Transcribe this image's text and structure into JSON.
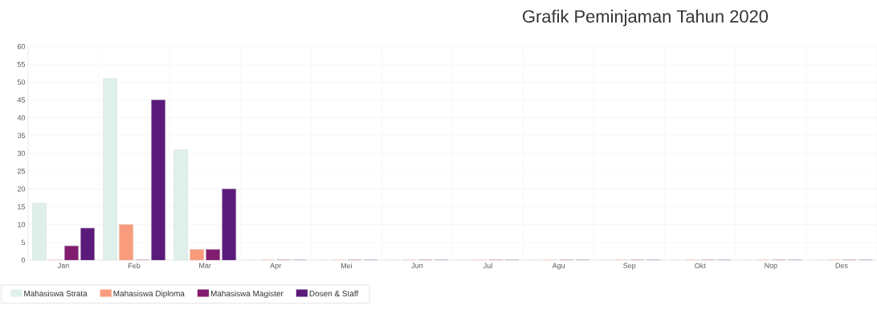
{
  "chart_data": {
    "type": "bar",
    "title": "Grafik Peminjaman Tahun 2020",
    "categories": [
      "Jan",
      "Feb",
      "Mar",
      "Apr",
      "Mei",
      "Jun",
      "Jul",
      "Agu",
      "Sep",
      "Okt",
      "Nop",
      "Des"
    ],
    "series": [
      {
        "name": "Mahasiswa Strata",
        "color": "#dff0ea",
        "values": [
          16,
          51,
          31,
          0,
          0,
          0,
          0,
          0,
          0,
          0,
          0,
          0
        ]
      },
      {
        "name": "Mahasiswa Diploma",
        "color": "#f99b7d",
        "values": [
          0,
          10,
          3,
          0,
          0,
          0,
          0,
          0,
          0,
          0,
          0,
          0
        ]
      },
      {
        "name": "Mahasiswa Magister",
        "color": "#821c6e",
        "values": [
          4,
          0,
          3,
          0,
          0,
          0,
          0,
          0,
          0,
          0,
          0,
          0
        ]
      },
      {
        "name": "Dosen & Staff",
        "color": "#5a1a7a",
        "values": [
          9,
          45,
          20,
          0,
          0,
          0,
          0,
          0,
          0,
          0,
          0,
          0
        ]
      }
    ],
    "ylim": [
      0,
      60
    ],
    "yticks": [
      0,
      5,
      10,
      15,
      20,
      25,
      30,
      35,
      40,
      45,
      50,
      55,
      60
    ],
    "grid": true,
    "legend": "bottom"
  }
}
